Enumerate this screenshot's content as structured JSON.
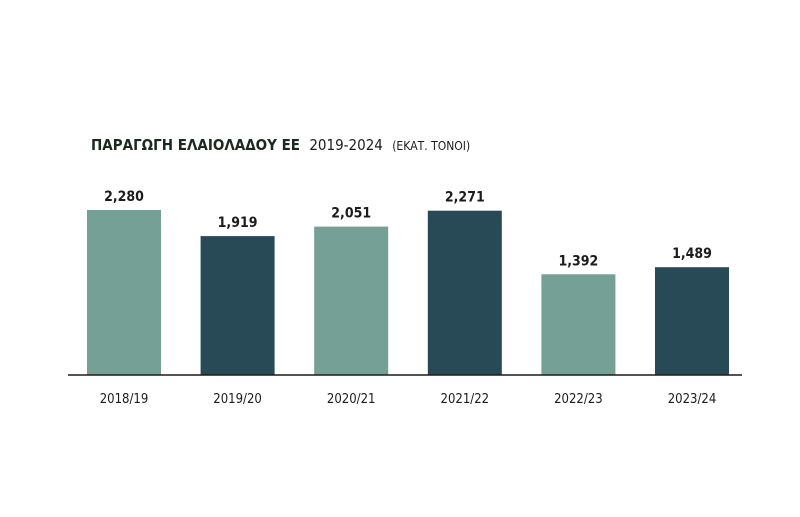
{
  "chart_data": {
    "type": "bar",
    "title_bold": "ΠΑΡΑΓΩΓΗ ΕΛΑΙΟΛΑΔΟΥ ΕΕ",
    "title_years": "2019-2024",
    "title_unit": "(ΕΚΑΤ. ΤΟΝΟΙ)",
    "categories": [
      "2018/19",
      "2019/20",
      "2020/21",
      "2021/22",
      "2022/23",
      "2023/24"
    ],
    "values": [
      2280,
      1919,
      2051,
      2271,
      1392,
      1489
    ],
    "value_labels": [
      "2,280",
      "1,919",
      "2,051",
      "2,271",
      "1,392",
      "1,489"
    ],
    "colors": [
      "#74a095",
      "#284a56",
      "#74a095",
      "#284a56",
      "#74a095",
      "#284a56"
    ],
    "ylim": [
      0,
      2280
    ],
    "grid": false,
    "legend": "none",
    "xlabel": "",
    "ylabel": ""
  }
}
